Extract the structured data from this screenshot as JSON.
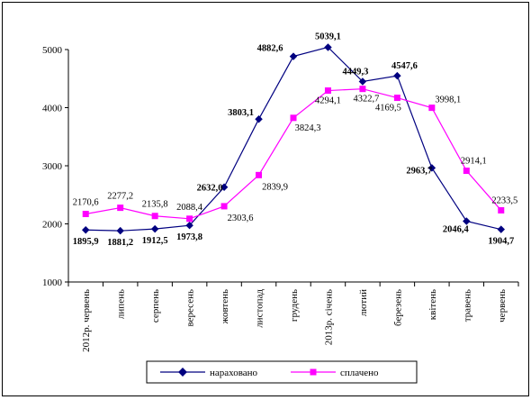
{
  "chart_data": {
    "type": "line",
    "title": "",
    "xlabel": "",
    "ylabel": "",
    "ylim": [
      1000,
      5000
    ],
    "yticks": [
      "1000",
      "2000",
      "3000",
      "4000",
      "5000"
    ],
    "grid": false,
    "legend_position": "bottom",
    "categories": [
      "2012р. червень",
      "липень",
      "серпень",
      "вересень",
      "жовтень",
      "листопад",
      "грудень",
      "2013р. січень",
      "лютий",
      "березень",
      "квітень",
      "травень",
      "червень"
    ],
    "series": [
      {
        "name": "нараховано",
        "color": "#000080",
        "marker": "diamond",
        "values": [
          1895.9,
          1881.2,
          1912.5,
          1973.8,
          2632.0,
          3803.1,
          4882.6,
          5039.1,
          4449.3,
          4547.6,
          2963.7,
          2046.4,
          1904.7
        ],
        "labels": [
          "1895,9",
          "1881,2",
          "1912,5",
          "1973,8",
          "2632,0",
          "3803,1",
          "4882,6",
          "5039,1",
          "4449,3",
          "4547,6",
          "2963,7",
          "2046,4",
          "1904,7"
        ]
      },
      {
        "name": "сплачено",
        "color": "#ff00ff",
        "marker": "square",
        "values": [
          2170.6,
          2277.2,
          2135.8,
          2088.4,
          2303.6,
          2839.9,
          3824.3,
          4294.1,
          4322.7,
          4169.5,
          3998.1,
          2914.1,
          2233.5
        ],
        "labels": [
          "2170,6",
          "2277,2",
          "2135,8",
          "2088,4",
          "2303,6",
          "2839,9",
          "3824,3",
          "4294,1",
          "4322,7",
          "4169,5",
          "3998,1",
          "2914,1",
          "2233,5"
        ]
      }
    ]
  }
}
